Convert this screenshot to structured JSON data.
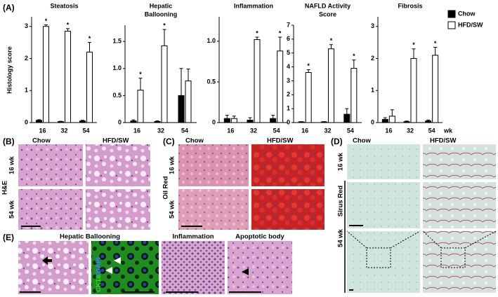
{
  "chart_data": [
    {
      "type": "bar",
      "title": [
        "Steatosis"
      ],
      "ylabel": "Histology score",
      "categories": [
        "16",
        "32",
        "54"
      ],
      "series": [
        {
          "color": "#000000",
          "values": [
            0.07,
            0.03,
            0.05
          ],
          "errors": [
            0.02,
            0.01,
            0.02
          ]
        },
        {
          "color": "#ffffff",
          "values": [
            3.0,
            2.85,
            2.2
          ],
          "errors": [
            0.05,
            0.08,
            0.3
          ],
          "significance": [
            "*",
            "*",
            "*"
          ]
        }
      ],
      "ylim": [
        0,
        3.3
      ],
      "yticks": [
        0,
        1,
        2,
        3
      ]
    },
    {
      "type": "bar",
      "title": [
        "Hepatic",
        "Ballooning"
      ],
      "categories": [
        "16",
        "32",
        "54"
      ],
      "series": [
        {
          "color": "#000000",
          "values": [
            0.03,
            0.02,
            0.5
          ],
          "errors": [
            0.02,
            0.01,
            0.5
          ]
        },
        {
          "color": "#ffffff",
          "values": [
            0.6,
            1.42,
            0.77
          ],
          "errors": [
            0.22,
            0.3,
            0.22
          ],
          "significance": [
            "*",
            "*",
            null
          ]
        }
      ],
      "ylim": [
        0,
        1.8
      ],
      "yticks": [
        0,
        0.5,
        {
          "value": 1,
          "label": "1.0"
        },
        1.5
      ]
    },
    {
      "type": "bar",
      "title": [
        "Inflammation"
      ],
      "categories": [
        "16",
        "32",
        "54"
      ],
      "series": [
        {
          "color": "#000000",
          "values": [
            0.05,
            0.03,
            0.05
          ],
          "errors": [
            0.04,
            0.03,
            0.04
          ]
        },
        {
          "color": "#ffffff",
          "values": [
            0.05,
            1.02,
            0.88
          ],
          "errors": [
            0.03,
            0.03,
            0.17
          ],
          "significance": [
            null,
            "*",
            "*"
          ]
        }
      ],
      "ylim": [
        0,
        1.3
      ],
      "yticks": [
        0,
        0.5,
        {
          "value": 1,
          "label": "1.0"
        }
      ]
    },
    {
      "type": "bar",
      "title": [
        "NAFLD Activity",
        "Score"
      ],
      "categories": [
        "16",
        "32",
        "54"
      ],
      "series": [
        {
          "color": "#000000",
          "values": [
            0.05,
            0.05,
            0.6
          ],
          "errors": [
            0.02,
            0.02,
            0.4
          ]
        },
        {
          "color": "#ffffff",
          "values": [
            3.6,
            5.3,
            3.9
          ],
          "errors": [
            0.2,
            0.3,
            0.6
          ],
          "significance": [
            "*",
            "*",
            "*"
          ]
        }
      ],
      "ylim": [
        0,
        7
      ],
      "yticks": [
        0,
        1,
        2,
        3,
        4,
        5,
        6,
        7
      ]
    },
    {
      "type": "bar",
      "title": [
        "Fibrosis"
      ],
      "categories": [
        "16",
        "32",
        "54"
      ],
      "xlabel": "wk",
      "legend": "upper right",
      "series": [
        {
          "name": "Chow",
          "color": "#000000",
          "values": [
            0.1,
            0.03,
            0.05
          ],
          "errors": [
            0.05,
            0.02,
            0.03
          ]
        },
        {
          "name": "HFD/SW",
          "color": "#ffffff",
          "values": [
            0.2,
            2.0,
            2.1
          ],
          "errors": [
            0.2,
            0.3,
            0.25
          ],
          "significance": [
            null,
            "*",
            "*"
          ]
        }
      ],
      "ylim": [
        0,
        3.3
      ],
      "yticks": [
        0,
        1,
        2,
        3
      ]
    }
  ],
  "panels": {
    "A": "(A)",
    "B": {
      "label": "(B)",
      "columns": [
        "Chow",
        "HFD/SW"
      ],
      "rows": [
        "16 wk",
        "54 wk"
      ],
      "stain": "H&E"
    },
    "C": {
      "label": "(C)",
      "columns": [
        "Chow",
        "HFD/SW"
      ],
      "rows": [
        "16 wk",
        "54 wk"
      ],
      "stain": "Oil Red"
    },
    "D": {
      "label": "(D)",
      "columns": [
        "Chow",
        "HFD/SW"
      ],
      "rows": [
        "16 wk",
        "54 wk"
      ],
      "stain": "Sirus Red"
    },
    "E": {
      "label": "(E)",
      "titles": [
        "Hepatic Ballooning",
        "Inflammation",
        "Apoptotic body"
      ],
      "stain": [
        "CK18",
        "/DAPI"
      ]
    }
  }
}
